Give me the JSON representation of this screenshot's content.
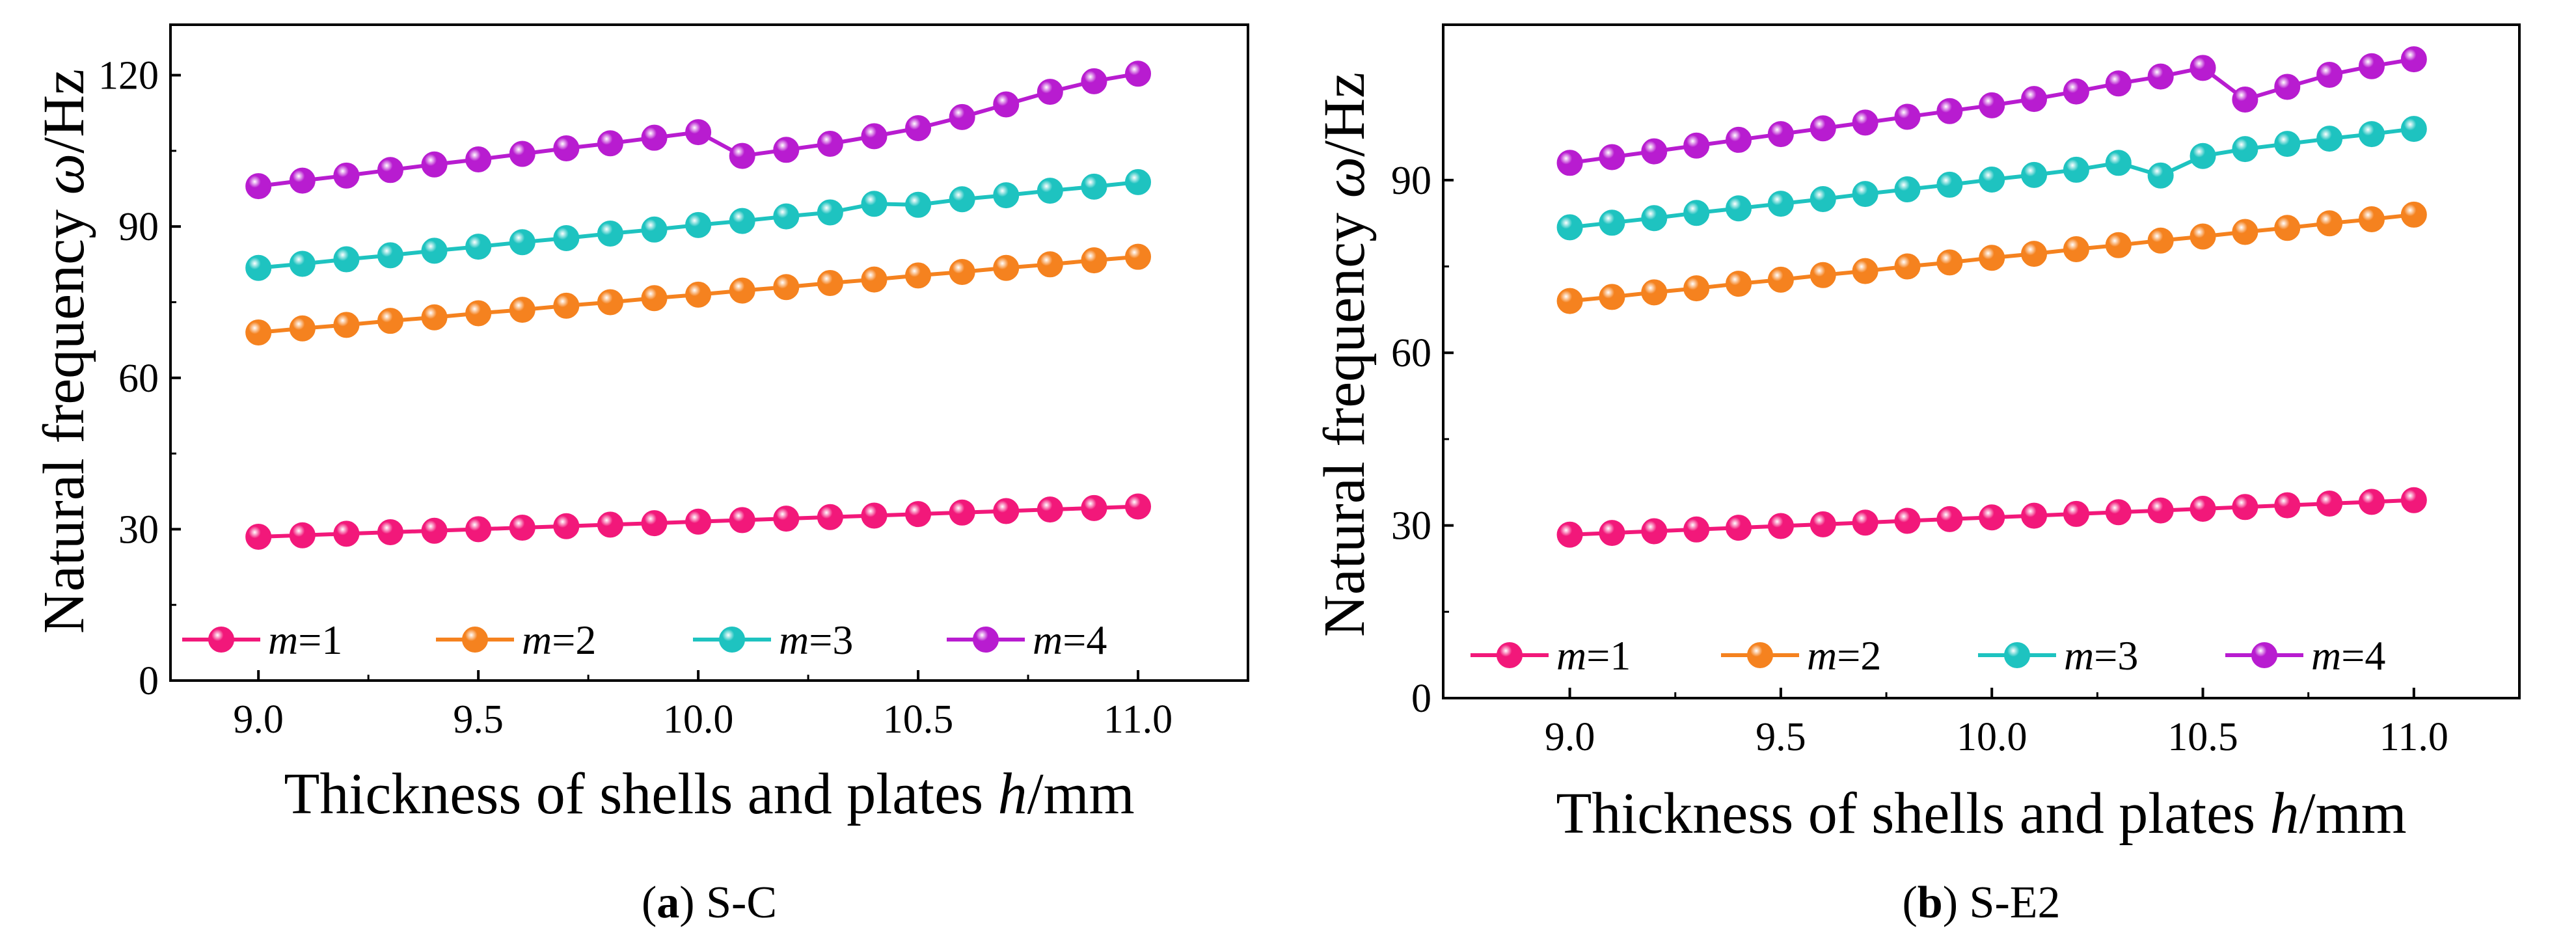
{
  "colors": {
    "m1": "#f2187a",
    "m2": "#f5821f",
    "m3": "#1ec3c0",
    "m4": "#b81cd0"
  },
  "chart_data": [
    {
      "type": "line",
      "caption": {
        "label": "a",
        "text": "S-C"
      },
      "xlabel": {
        "main": "Thickness of shells and plates ",
        "var": "h",
        "unit": "/mm"
      },
      "ylabel": {
        "main": "Natural frequency ",
        "var": "ω",
        "unit": "/Hz"
      },
      "xlim": [
        8.8,
        11.25
      ],
      "ylim": [
        0,
        130
      ],
      "xticks": [
        9.0,
        9.5,
        10.0,
        10.5,
        11.0
      ],
      "xtick_labels": [
        "9.0",
        "9.5",
        "10.0",
        "10.5",
        "11.0"
      ],
      "yticks": [
        0,
        30,
        60,
        90,
        120
      ],
      "ytick_labels": [
        "0",
        "30",
        "60",
        "90",
        "120"
      ],
      "x": [
        9.0,
        9.1,
        9.2,
        9.3,
        9.4,
        9.5,
        9.6,
        9.7,
        9.8,
        9.9,
        10.0,
        10.1,
        10.2,
        10.3,
        10.4,
        10.5,
        10.6,
        10.7,
        10.8,
        10.9,
        11.0
      ],
      "series": [
        {
          "name": "m=1",
          "var": "m",
          "eq": "=1",
          "color_key": "m1",
          "values": [
            28.5,
            28.8,
            29.1,
            29.4,
            29.7,
            30.0,
            30.3,
            30.6,
            30.9,
            31.2,
            31.5,
            31.8,
            32.1,
            32.4,
            32.7,
            33.0,
            33.3,
            33.6,
            33.9,
            34.2,
            34.5
          ]
        },
        {
          "name": "m=2",
          "var": "m",
          "eq": "=2",
          "color_key": "m2",
          "values": [
            69.0,
            69.8,
            70.5,
            71.3,
            72.0,
            72.8,
            73.5,
            74.3,
            75.0,
            75.8,
            76.5,
            77.3,
            78.0,
            78.8,
            79.5,
            80.3,
            81.0,
            81.8,
            82.5,
            83.3,
            84.0
          ]
        },
        {
          "name": "m=3",
          "var": "m",
          "eq": "=3",
          "color_key": "m3",
          "values": [
            81.8,
            82.6,
            83.5,
            84.3,
            85.2,
            86.0,
            86.9,
            87.7,
            88.6,
            89.4,
            90.3,
            91.1,
            92.0,
            92.8,
            94.5,
            94.3,
            95.4,
            96.2,
            97.1,
            97.9,
            98.8
          ]
        },
        {
          "name": "m=4",
          "var": "m",
          "eq": "=4",
          "color_key": "m4",
          "values": [
            98.0,
            99.1,
            100.1,
            101.2,
            102.3,
            103.3,
            104.4,
            105.5,
            106.5,
            107.6,
            108.7,
            104.0,
            105.2,
            106.4,
            107.9,
            109.5,
            111.7,
            114.2,
            116.7,
            118.8,
            120.3
          ]
        }
      ],
      "legend": "bottom, horizontal"
    },
    {
      "type": "line",
      "caption": {
        "label": "b",
        "text": "S-E2"
      },
      "xlabel": {
        "main": "Thickness of shells and plates ",
        "var": "h",
        "unit": "/mm"
      },
      "ylabel": {
        "main": "Natural frequency ",
        "var": "ω",
        "unit": "/Hz"
      },
      "xlim": [
        8.7,
        11.25
      ],
      "ylim": [
        0,
        117
      ],
      "xticks": [
        9.0,
        9.5,
        10.0,
        10.5,
        11.0
      ],
      "xtick_labels": [
        "9.0",
        "9.5",
        "10.0",
        "10.5",
        "11.0"
      ],
      "yticks": [
        0,
        30,
        60,
        90
      ],
      "ytick_labels": [
        "0",
        "30",
        "60",
        "90"
      ],
      "x": [
        9.0,
        9.1,
        9.2,
        9.3,
        9.4,
        9.5,
        9.6,
        9.7,
        9.8,
        9.9,
        10.0,
        10.1,
        10.2,
        10.3,
        10.4,
        10.5,
        10.6,
        10.7,
        10.8,
        10.9,
        11.0
      ],
      "series": [
        {
          "name": "m=1",
          "var": "m",
          "eq": "=1",
          "color_key": "m1",
          "values": [
            28.4,
            28.7,
            29.0,
            29.3,
            29.6,
            29.9,
            30.2,
            30.5,
            30.8,
            31.1,
            31.4,
            31.7,
            32.0,
            32.3,
            32.6,
            32.9,
            33.2,
            33.5,
            33.8,
            34.1,
            34.4
          ]
        },
        {
          "name": "m=2",
          "var": "m",
          "eq": "=2",
          "color_key": "m2",
          "values": [
            69.0,
            69.7,
            70.5,
            71.2,
            72.0,
            72.7,
            73.5,
            74.2,
            75.0,
            75.7,
            76.5,
            77.2,
            78.0,
            78.7,
            79.5,
            80.2,
            81.0,
            81.7,
            82.5,
            83.2,
            84.0
          ]
        },
        {
          "name": "m=3",
          "var": "m",
          "eq": "=3",
          "color_key": "m3",
          "values": [
            81.8,
            82.6,
            83.4,
            84.3,
            85.1,
            85.9,
            86.7,
            87.6,
            88.4,
            89.2,
            90.1,
            90.9,
            91.8,
            93.0,
            90.8,
            94.2,
            95.4,
            96.3,
            97.2,
            98.0,
            98.9
          ]
        },
        {
          "name": "m=4",
          "var": "m",
          "eq": "=4",
          "color_key": "m4",
          "values": [
            93.0,
            94.0,
            95.0,
            96.0,
            97.0,
            98.0,
            99.0,
            100.0,
            101.0,
            102.0,
            103.0,
            104.1,
            105.4,
            106.8,
            108.0,
            109.5,
            104.0,
            106.2,
            108.3,
            109.8,
            111.0
          ]
        }
      ],
      "legend": "bottom, horizontal"
    }
  ]
}
